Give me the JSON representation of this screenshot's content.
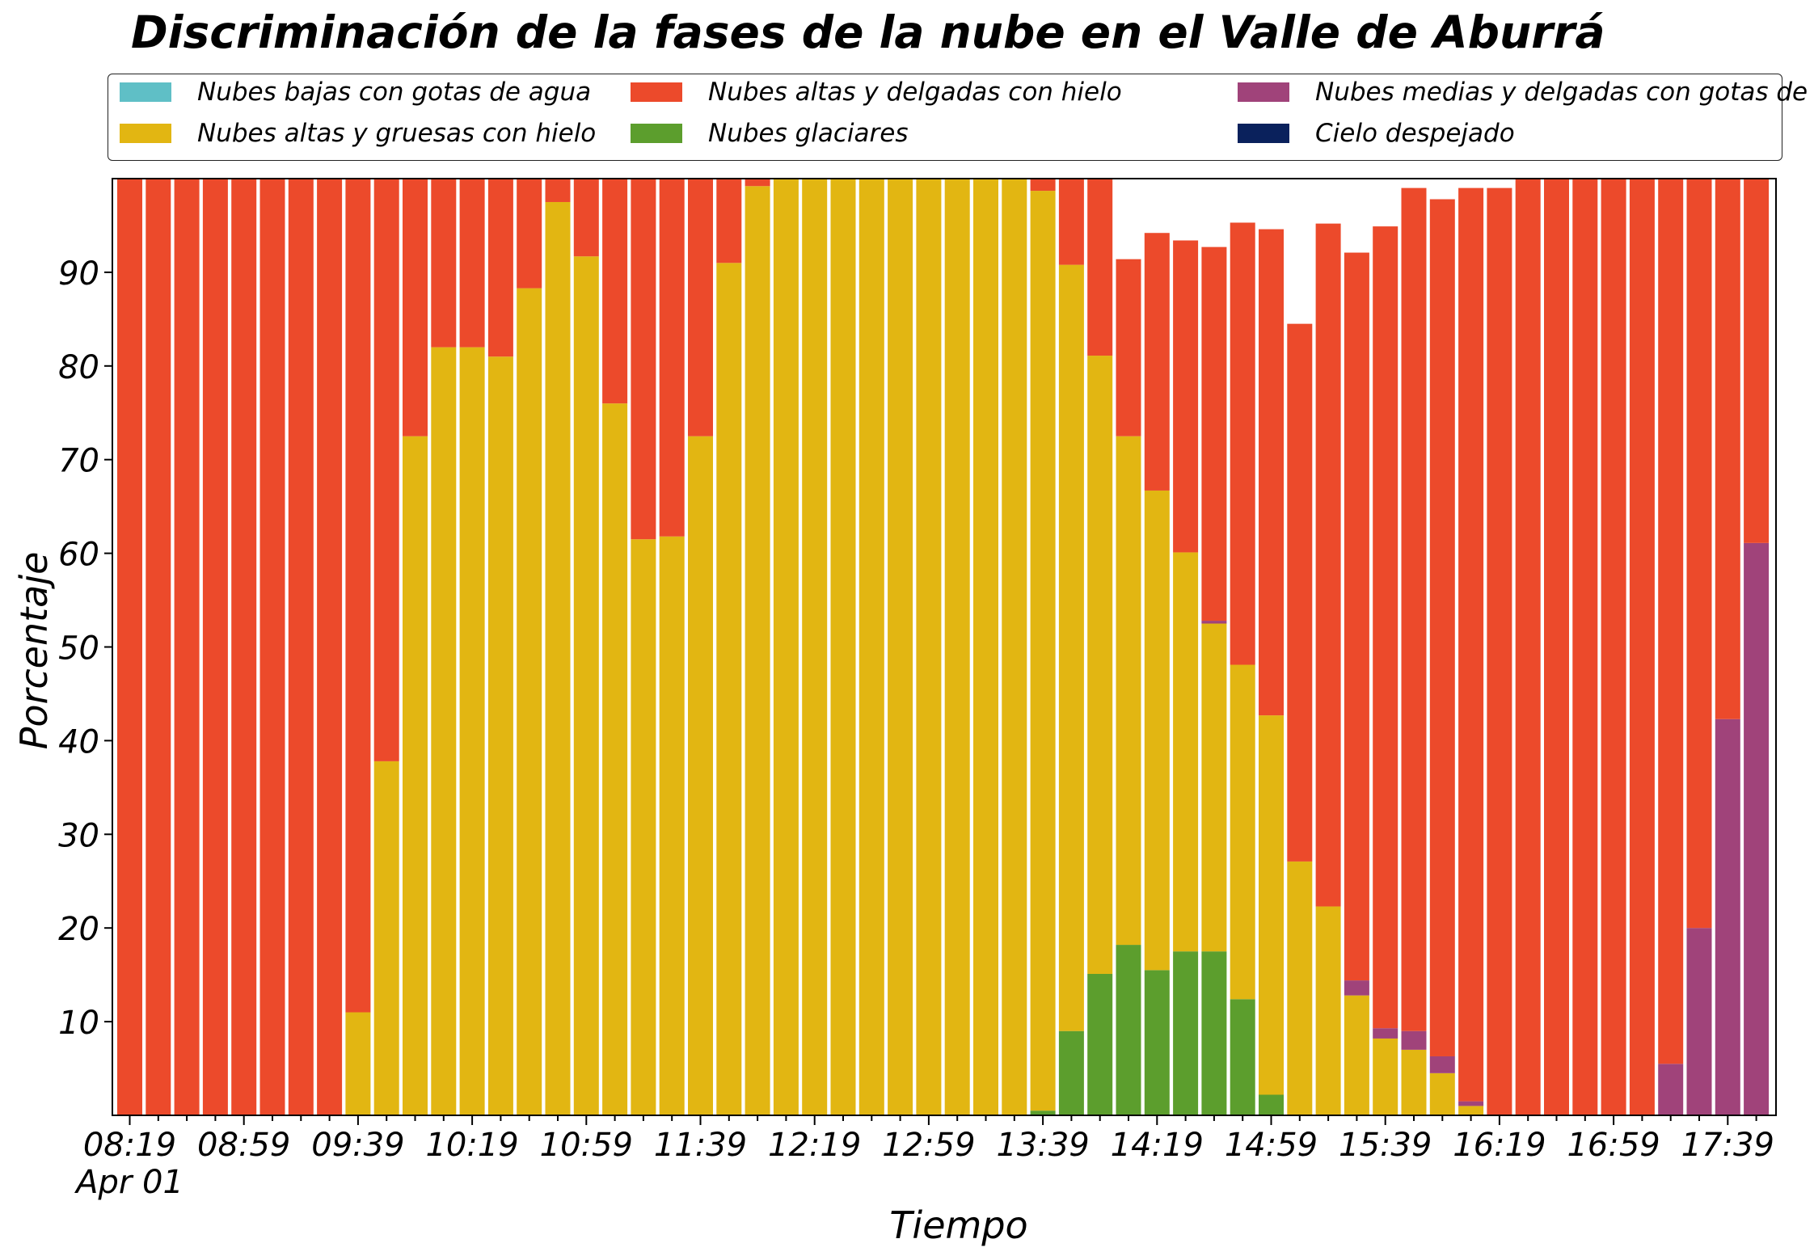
{
  "chart_data": {
    "type": "bar",
    "stacked": true,
    "title": "Discriminación de la fases de la nube en el Valle de Aburrá",
    "xlabel": "Tiempo",
    "ylabel": "Porcentaje",
    "ylim": [
      0,
      100
    ],
    "yticks": [
      10,
      20,
      30,
      40,
      50,
      60,
      70,
      80,
      90
    ],
    "grid": false,
    "legend_position": "top",
    "x_start": "08:19",
    "x_step_minutes": 10,
    "x_date_label": "Apr 01",
    "x_tick_labels": [
      "08:19",
      "08:59",
      "09:39",
      "10:19",
      "10:59",
      "11:39",
      "12:19",
      "12:59",
      "13:39",
      "14:19",
      "14:59",
      "15:39",
      "16:19",
      "16:59",
      "17:39"
    ],
    "categories": [
      "08:19",
      "08:29",
      "08:39",
      "08:49",
      "08:59",
      "09:09",
      "09:19",
      "09:29",
      "09:39",
      "09:49",
      "09:59",
      "10:09",
      "10:19",
      "10:29",
      "10:39",
      "10:49",
      "10:59",
      "11:09",
      "11:19",
      "11:29",
      "11:39",
      "11:49",
      "11:59",
      "12:09",
      "12:19",
      "12:29",
      "12:39",
      "12:49",
      "12:59",
      "13:09",
      "13:19",
      "13:29",
      "13:39",
      "13:49",
      "13:59",
      "14:09",
      "14:19",
      "14:29",
      "14:39",
      "14:49",
      "14:59",
      "15:09",
      "15:19",
      "15:29",
      "15:39",
      "15:49",
      "15:59",
      "16:09",
      "16:19",
      "16:29",
      "16:39",
      "16:49",
      "16:59",
      "17:09",
      "17:19",
      "17:29",
      "17:39",
      "17:49"
    ],
    "series": [
      {
        "name": "Nubes bajas con gotas de agua",
        "color": "#5fbfc6",
        "values": [
          0,
          0,
          0,
          0,
          0,
          0,
          0,
          0,
          0,
          0,
          0,
          0,
          0,
          0,
          0,
          0,
          0,
          0,
          0,
          0,
          0,
          0,
          0,
          0,
          0,
          0,
          0,
          0,
          0,
          0,
          0,
          0,
          0,
          0,
          0,
          0,
          0,
          0,
          0,
          0,
          0,
          0,
          0,
          0,
          0,
          0,
          0,
          0,
          0,
          0,
          0,
          0,
          0,
          0,
          0,
          0,
          0,
          0
        ]
      },
      {
        "name": "Nubes glaciares",
        "color": "#5c9e2d",
        "values": [
          0,
          0,
          0,
          0,
          0,
          0,
          0,
          0,
          0,
          0,
          0,
          0,
          0,
          0,
          0,
          0,
          0,
          0,
          0,
          0,
          0,
          0,
          0,
          0,
          0,
          0,
          0,
          0,
          0,
          0,
          0,
          0,
          0.5,
          9,
          15.1,
          18.2,
          15.5,
          17.5,
          17.5,
          12.4,
          2.2,
          0,
          0,
          0,
          0,
          0,
          0,
          0,
          0,
          0,
          0,
          0,
          0,
          0,
          0,
          0,
          0,
          0
        ]
      },
      {
        "name": "Nubes altas y gruesas con hielo",
        "color": "#e2b612",
        "values": [
          0,
          0,
          0,
          0,
          0,
          0,
          0,
          0,
          11,
          37.8,
          72.5,
          82,
          82,
          81,
          88.3,
          97.5,
          91.7,
          76,
          61.5,
          61.8,
          72.5,
          91,
          99.2,
          100,
          100,
          100,
          100,
          100,
          100,
          100,
          100,
          100,
          98.2,
          81.8,
          66,
          54.3,
          51.2,
          42.6,
          35,
          35.7,
          40.5,
          27.1,
          22.3,
          12.8,
          8.2,
          7,
          4.5,
          1,
          0,
          0,
          0,
          0,
          0,
          0,
          0,
          0,
          0,
          0
        ]
      },
      {
        "name": "Nubes medias y delgadas con gotas de agua",
        "color": "#a0437a",
        "values": [
          0,
          0,
          0,
          0,
          0,
          0,
          0,
          0,
          0,
          0,
          0,
          0,
          0,
          0,
          0,
          0,
          0,
          0,
          0,
          0,
          0,
          0,
          0,
          0,
          0,
          0,
          0,
          0,
          0,
          0,
          0,
          0,
          0,
          0,
          0,
          0,
          0,
          0,
          0.3,
          0,
          0,
          0,
          0,
          1.6,
          1.1,
          2,
          1.8,
          0.5,
          0,
          0,
          0,
          0,
          0,
          0,
          5.5,
          20,
          42.3,
          61.1
        ]
      },
      {
        "name": "Nubes altas y delgadas con hielo",
        "color": "#ec4a2b",
        "values": [
          100,
          100,
          100,
          100,
          100,
          100,
          100,
          100,
          89,
          62.2,
          27.5,
          18,
          18,
          19,
          11.7,
          2.5,
          8.3,
          24,
          38.5,
          38.2,
          27.5,
          9,
          0.8,
          0,
          0,
          0,
          0,
          0,
          0,
          0,
          0,
          0,
          1.3,
          9.2,
          18.9,
          18.9,
          27.5,
          33.3,
          39.9,
          47.2,
          51.9,
          57.4,
          72.9,
          77.7,
          85.6,
          90,
          91.5,
          97.5,
          99,
          100,
          100,
          100,
          100,
          100,
          94.5,
          80,
          57.7,
          38.9
        ]
      },
      {
        "name": "Cielo despejado",
        "color": "#0a215c",
        "values": [
          0,
          0,
          0,
          0,
          0,
          0,
          0,
          0,
          0,
          0,
          0,
          0,
          0,
          0,
          0,
          0,
          0,
          0,
          0,
          0,
          0,
          0,
          0,
          0,
          0,
          0,
          0,
          0,
          0,
          0,
          0,
          0,
          0,
          0,
          0,
          0,
          0,
          0,
          0,
          0,
          0,
          0,
          0,
          0,
          0,
          0,
          0,
          0,
          0,
          0,
          0,
          0,
          0,
          0,
          0,
          0,
          0,
          0
        ]
      }
    ]
  }
}
